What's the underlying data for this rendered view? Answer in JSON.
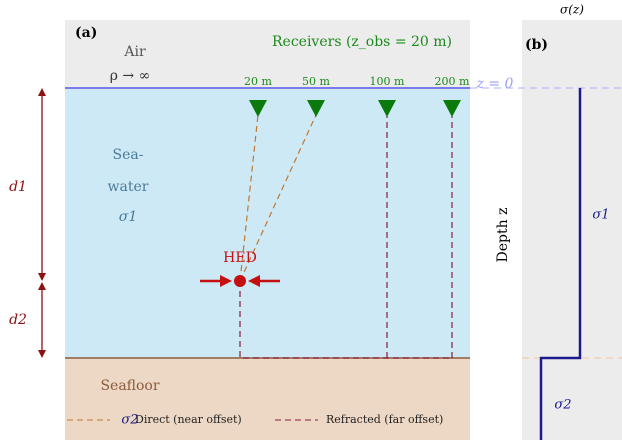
{
  "panel_a": {
    "label": "(a)",
    "air": {
      "title": "Air",
      "resistivity": "ρ → ∞"
    },
    "receivers": {
      "title": "Receivers (z_obs = 20 m)",
      "offsets": [
        "20 m",
        "50 m",
        "100 m",
        "200 m"
      ]
    },
    "surface_label": "z = 0",
    "seawater": {
      "line1": "Sea-",
      "line2": "water",
      "conductivity": "σ1"
    },
    "source": "HED",
    "depths": [
      "d1",
      "d2"
    ],
    "seafloor": {
      "title": "Seafloor",
      "conductivity": "σ2"
    },
    "legend": [
      "Direct (near offset)",
      "Refracted (far offset)"
    ]
  },
  "panel_b": {
    "label": "(b)",
    "title": "σ(z)",
    "axis": "Depth z",
    "layers": [
      "σ1",
      "σ2"
    ]
  }
}
